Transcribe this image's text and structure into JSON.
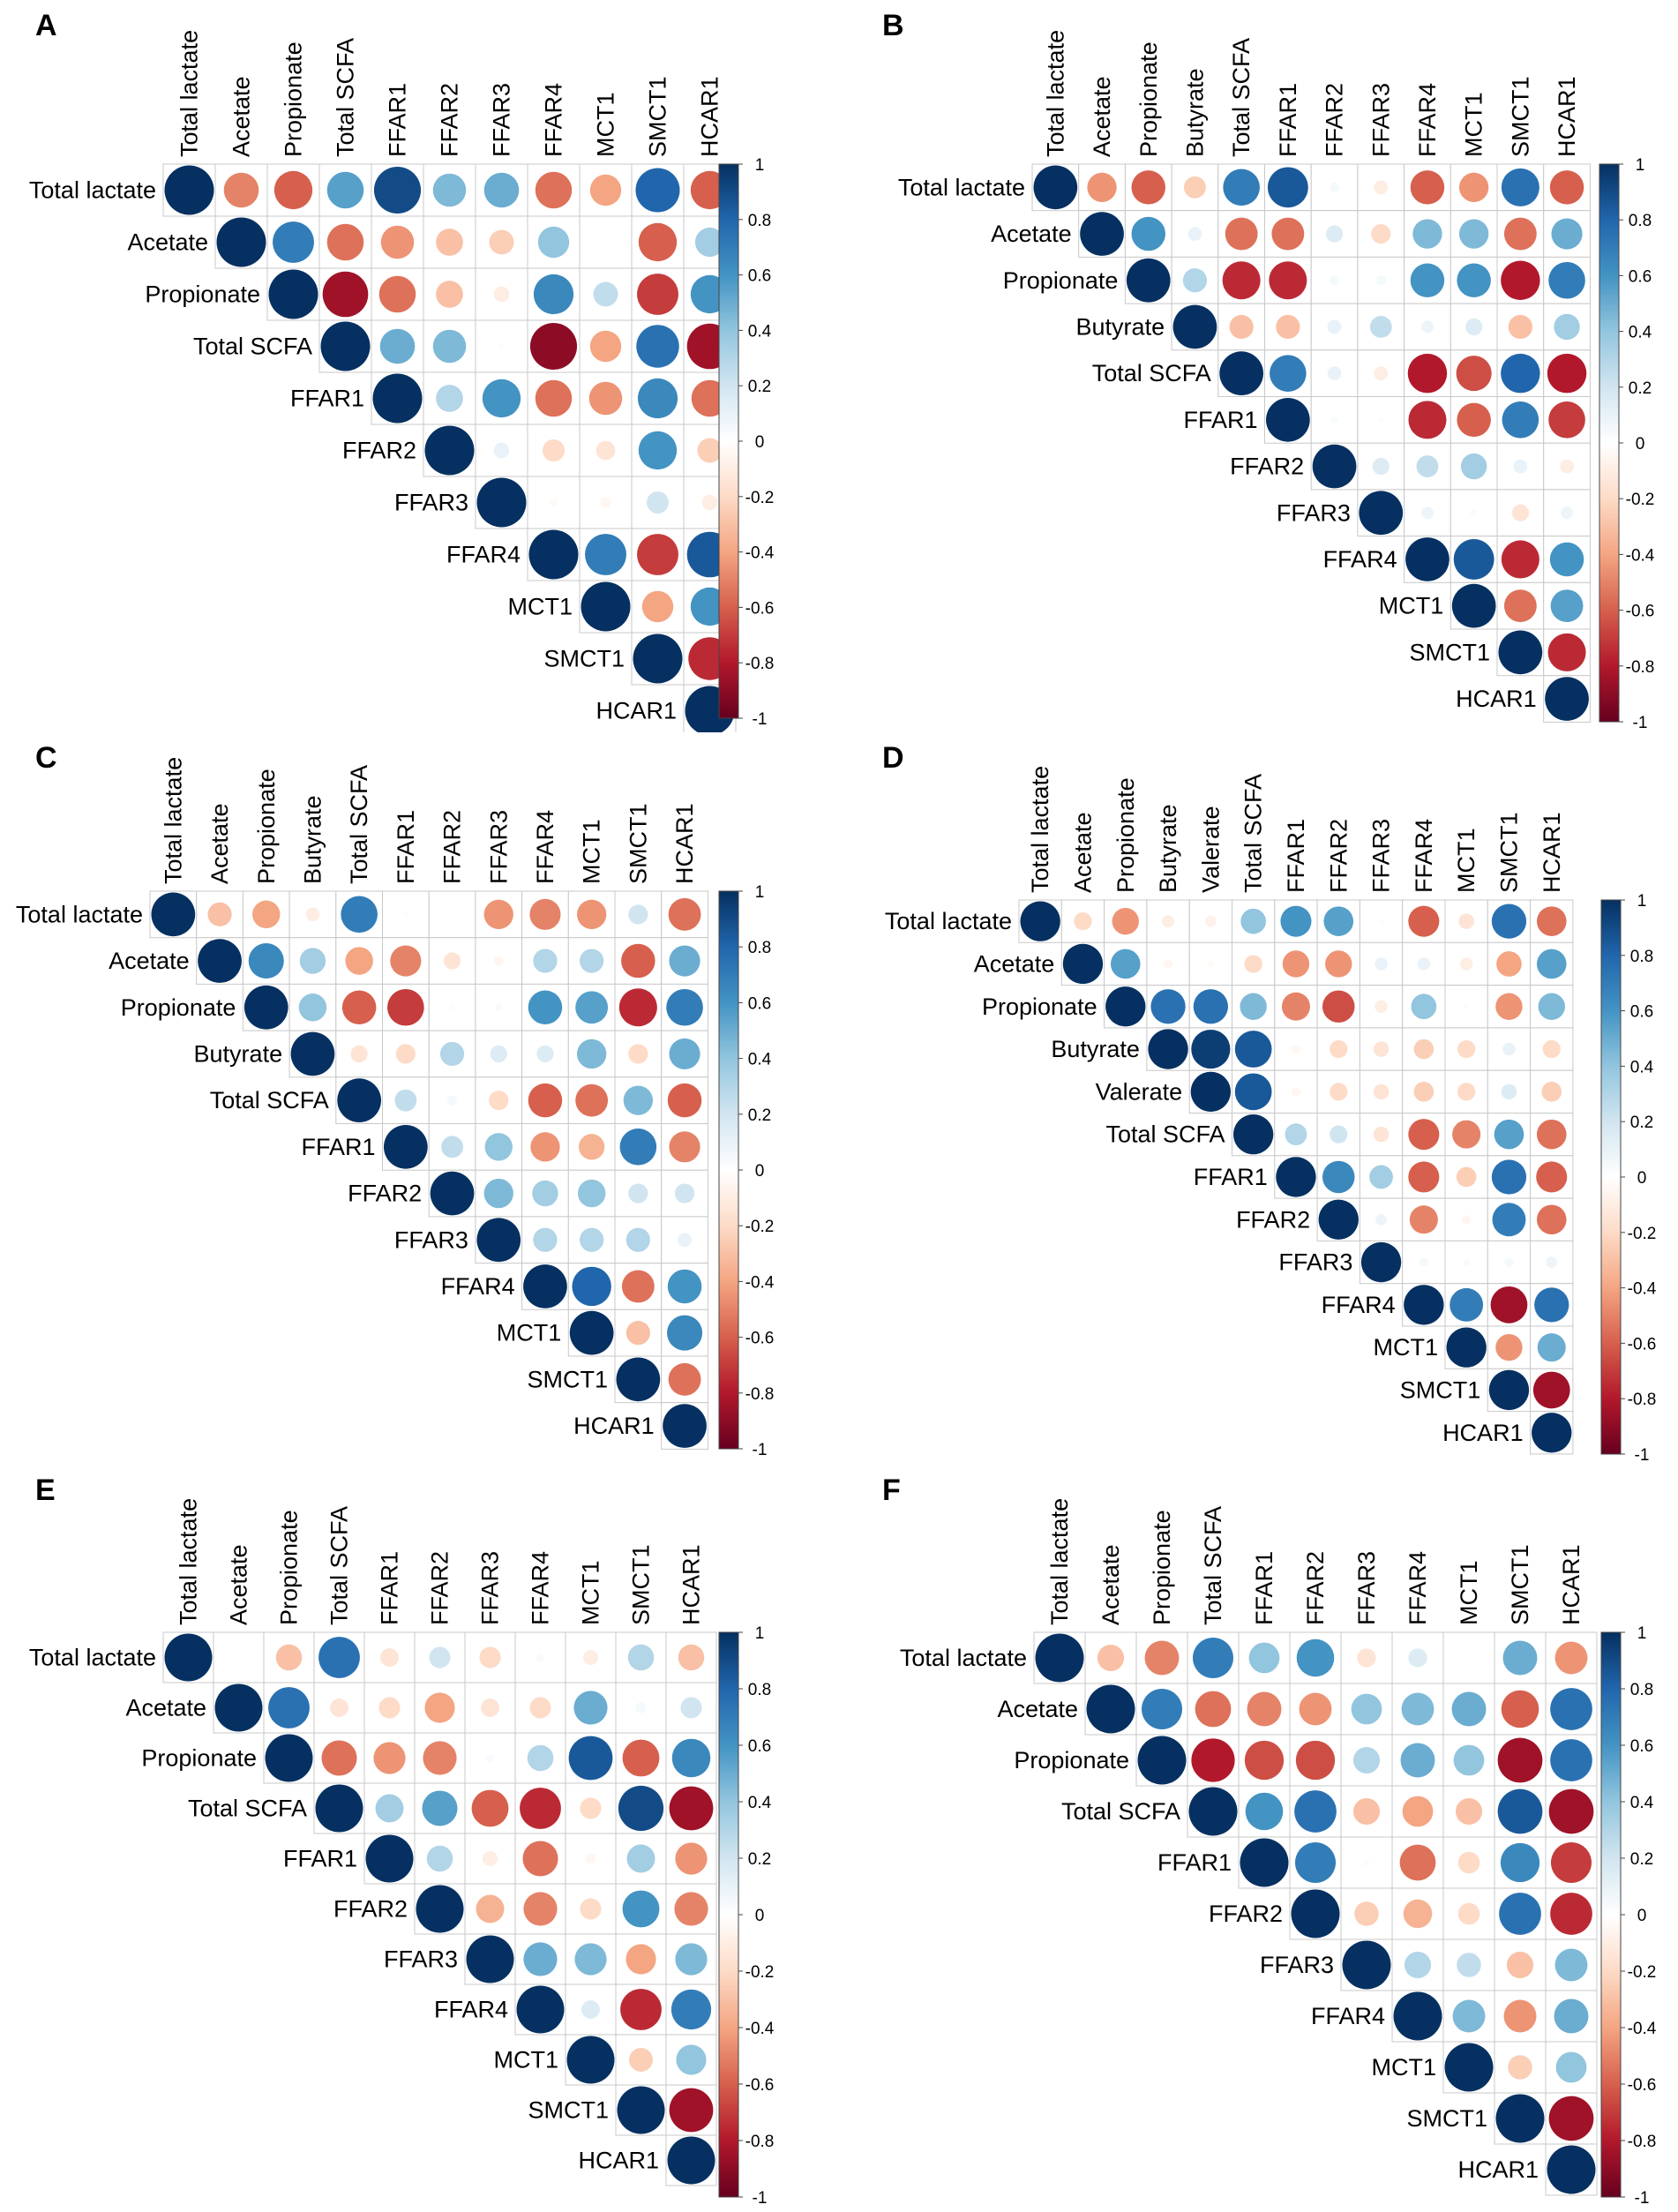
{
  "colorbar": {
    "ticks": [
      "1",
      "0.8",
      "0.6",
      "0.4",
      "0.2",
      "0",
      "-0.2",
      "-0.4",
      "-0.6",
      "-0.8",
      "-1"
    ],
    "tick_values": [
      1,
      0.8,
      0.6,
      0.4,
      0.2,
      0,
      -0.2,
      -0.4,
      -0.6,
      -0.8,
      -1
    ],
    "colors_low_to_high": [
      "#67001f",
      "#b2182b",
      "#d6604d",
      "#f4a582",
      "#fddbc7",
      "#ffffff",
      "#d1e5f0",
      "#92c5de",
      "#4393c3",
      "#2166ac",
      "#053061"
    ]
  },
  "chart_data": [
    {
      "panel": "A",
      "type": "heatmap",
      "subtype": "correlogram-upper",
      "variables": [
        "Total lactate",
        "Acetate",
        "Propionate",
        "Total SCFA",
        "FFAR1",
        "FFAR2",
        "FFAR3",
        "FFAR4",
        "MCT1",
        "SMCT1",
        "HCAR1"
      ],
      "rows": [
        [
          1,
          -0.5,
          -0.6,
          0.55,
          0.9,
          0.45,
          0.5,
          -0.55,
          -0.4,
          0.8,
          -0.6
        ],
        [
          1,
          0.7,
          -0.55,
          -0.45,
          -0.3,
          -0.25,
          0.4,
          0,
          -0.6,
          0.35
        ],
        [
          1,
          -0.85,
          -0.55,
          -0.3,
          -0.1,
          0.65,
          0.25,
          -0.7,
          0.6
        ],
        [
          1,
          0.5,
          0.45,
          -0.02,
          -0.9,
          -0.4,
          0.75,
          -0.85
        ],
        [
          1,
          0.3,
          0.6,
          -0.55,
          -0.45,
          0.65,
          -0.55
        ],
        [
          1,
          0.1,
          -0.2,
          -0.15,
          0.6,
          -0.25
        ],
        [
          1,
          -0.03,
          -0.05,
          0.2,
          -0.1
        ],
        [
          1,
          0.7,
          -0.7,
          0.85
        ],
        [
          1,
          -0.4,
          0.6
        ],
        [
          1,
          -0.75
        ],
        [
          1
        ]
      ]
    },
    {
      "panel": "B",
      "type": "heatmap",
      "subtype": "correlogram-upper",
      "variables": [
        "Total lactate",
        "Acetate",
        "Propionate",
        "Butyrate",
        "Total SCFA",
        "FFAR1",
        "FFAR2",
        "FFAR3",
        "FFAR4",
        "MCT1",
        "SMCT1",
        "HCAR1"
      ],
      "rows": [
        [
          1,
          -0.45,
          -0.6,
          -0.25,
          0.7,
          0.85,
          0.05,
          -0.1,
          -0.6,
          -0.45,
          0.75,
          -0.6
        ],
        [
          1,
          0.6,
          0.1,
          -0.55,
          -0.55,
          0.15,
          -0.2,
          0.45,
          0.45,
          -0.55,
          0.5
        ],
        [
          1,
          0.3,
          -0.75,
          -0.75,
          0.05,
          0.05,
          0.6,
          0.6,
          -0.8,
          0.7
        ],
        [
          1,
          -0.3,
          -0.3,
          0.1,
          0.25,
          0.08,
          0.15,
          -0.3,
          0.35
        ],
        [
          1,
          0.7,
          0.1,
          -0.1,
          -0.8,
          -0.65,
          0.8,
          -0.8
        ],
        [
          1,
          0.03,
          -0.02,
          -0.75,
          -0.6,
          0.7,
          -0.7
        ],
        [
          1,
          0.15,
          0.25,
          0.35,
          0.1,
          -0.1
        ],
        [
          1,
          0.08,
          -0.03,
          -0.15,
          0.08
        ],
        [
          1,
          0.85,
          -0.75,
          0.6
        ],
        [
          1,
          -0.55,
          0.55
        ],
        [
          1,
          -0.75
        ],
        [
          1
        ]
      ]
    },
    {
      "panel": "C",
      "type": "heatmap",
      "subtype": "correlogram-upper",
      "variables": [
        "Total lactate",
        "Acetate",
        "Propionate",
        "Butyrate",
        "Total SCFA",
        "FFAR1",
        "FFAR2",
        "FFAR3",
        "FFAR4",
        "MCT1",
        "SMCT1",
        "HCAR1"
      ],
      "rows": [
        [
          1,
          -0.3,
          -0.4,
          -0.1,
          0.7,
          0.02,
          0,
          -0.45,
          -0.5,
          -0.45,
          0.2,
          -0.55
        ],
        [
          1,
          0.65,
          0.35,
          -0.4,
          -0.5,
          -0.15,
          -0.05,
          0.3,
          0.3,
          -0.6,
          0.5
        ],
        [
          1,
          0.4,
          -0.6,
          -0.7,
          0.02,
          0.03,
          0.6,
          0.55,
          -0.75,
          0.7
        ],
        [
          1,
          -0.15,
          -0.2,
          0.3,
          0.15,
          0.15,
          0.45,
          -0.2,
          0.5
        ],
        [
          1,
          0.25,
          0.05,
          -0.2,
          -0.6,
          -0.55,
          0.45,
          -0.6
        ],
        [
          1,
          0.25,
          0.4,
          -0.45,
          -0.35,
          0.7,
          -0.5
        ],
        [
          1,
          0.45,
          0.35,
          0.4,
          0.2,
          0.2
        ],
        [
          1,
          0.3,
          0.3,
          0.3,
          0.1
        ],
        [
          1,
          0.8,
          -0.55,
          0.6
        ],
        [
          1,
          -0.3,
          0.65
        ],
        [
          1,
          -0.55
        ],
        [
          1
        ]
      ]
    },
    {
      "panel": "D",
      "type": "heatmap",
      "subtype": "correlogram-upper",
      "variables": [
        "Total lactate",
        "Acetate",
        "Propionate",
        "Butyrate",
        "Valerate",
        "Total SCFA",
        "FFAR1",
        "FFAR2",
        "FFAR3",
        "FFAR4",
        "MCT1",
        "SMCT1",
        "HCAR1"
      ],
      "rows": [
        [
          1,
          -0.2,
          -0.45,
          -0.1,
          -0.08,
          0.4,
          0.6,
          0.55,
          0.02,
          -0.6,
          -0.15,
          0.75,
          -0.55
        ],
        [
          1,
          0.55,
          -0.05,
          -0.03,
          -0.2,
          -0.45,
          -0.45,
          0.1,
          0.1,
          -0.1,
          -0.4,
          0.55
        ],
        [
          1,
          0.75,
          0.75,
          0.45,
          -0.5,
          -0.65,
          -0.1,
          0.4,
          0.02,
          -0.45,
          0.45
        ],
        [
          1,
          0.95,
          0.85,
          -0.05,
          -0.2,
          -0.15,
          -0.25,
          -0.2,
          0.1,
          -0.2
        ],
        [
          1,
          0.85,
          -0.05,
          -0.2,
          -0.15,
          -0.25,
          -0.2,
          0.15,
          -0.25
        ],
        [
          1,
          0.3,
          0.2,
          -0.15,
          -0.6,
          -0.5,
          0.55,
          -0.55
        ],
        [
          1,
          0.65,
          0.35,
          -0.6,
          -0.25,
          0.75,
          -0.6
        ],
        [
          1,
          0.08,
          -0.5,
          -0.05,
          0.7,
          -0.55
        ],
        [
          1,
          0.05,
          0.03,
          0.05,
          0.08
        ],
        [
          1,
          0.7,
          -0.85,
          0.75
        ],
        [
          1,
          -0.45,
          0.5
        ],
        [
          1,
          -0.85
        ],
        [
          1
        ]
      ]
    },
    {
      "panel": "E",
      "type": "heatmap",
      "subtype": "correlogram-upper",
      "variables": [
        "Total lactate",
        "Acetate",
        "Propionate",
        "Total SCFA",
        "FFAR1",
        "FFAR2",
        "FFAR3",
        "FFAR4",
        "MCT1",
        "SMCT1",
        "HCAR1"
      ],
      "rows": [
        [
          1,
          0,
          -0.3,
          0.75,
          -0.15,
          0.2,
          -0.2,
          0.03,
          -0.1,
          0.3,
          -0.3
        ],
        [
          1,
          0.75,
          -0.15,
          -0.2,
          -0.4,
          -0.15,
          -0.2,
          0.5,
          0.05,
          0.2
        ],
        [
          1,
          -0.55,
          -0.45,
          -0.5,
          0.03,
          0.3,
          0.85,
          -0.6,
          0.65
        ],
        [
          1,
          0.35,
          0.55,
          -0.6,
          -0.75,
          -0.2,
          0.9,
          -0.85
        ],
        [
          1,
          0.3,
          -0.1,
          -0.55,
          -0.05,
          0.35,
          -0.45
        ],
        [
          1,
          -0.35,
          -0.5,
          -0.2,
          0.6,
          -0.5
        ],
        [
          1,
          0.5,
          0.45,
          -0.4,
          0.45
        ],
        [
          1,
          0.15,
          -0.75,
          0.7
        ],
        [
          1,
          -0.25,
          0.4
        ],
        [
          1,
          -0.85
        ],
        [
          1
        ]
      ]
    },
    {
      "panel": "F",
      "type": "heatmap",
      "subtype": "correlogram-upper",
      "variables": [
        "Total lactate",
        "Acetate",
        "Propionate",
        "Total SCFA",
        "FFAR1",
        "FFAR2",
        "FFAR3",
        "FFAR4",
        "MCT1",
        "SMCT1",
        "HCAR1"
      ],
      "rows": [
        [
          1,
          -0.3,
          -0.5,
          0.7,
          0.4,
          0.6,
          -0.15,
          0.15,
          0,
          0.5,
          -0.45
        ],
        [
          1,
          0.7,
          -0.55,
          -0.5,
          -0.45,
          0.4,
          0.45,
          0.5,
          -0.6,
          0.75
        ],
        [
          1,
          -0.8,
          -0.65,
          -0.65,
          0.3,
          0.5,
          0.4,
          -0.85,
          0.75
        ],
        [
          1,
          0.6,
          0.75,
          -0.3,
          -0.4,
          -0.3,
          0.85,
          -0.85
        ],
        [
          1,
          0.7,
          0.02,
          -0.55,
          -0.2,
          0.65,
          -0.7
        ],
        [
          1,
          -0.25,
          -0.35,
          -0.2,
          0.75,
          -0.75
        ],
        [
          1,
          0.3,
          0.25,
          -0.3,
          0.45
        ],
        [
          1,
          0.45,
          -0.45,
          0.5
        ],
        [
          1,
          -0.25,
          0.4
        ],
        [
          1,
          -0.85
        ],
        [
          1
        ]
      ]
    }
  ]
}
